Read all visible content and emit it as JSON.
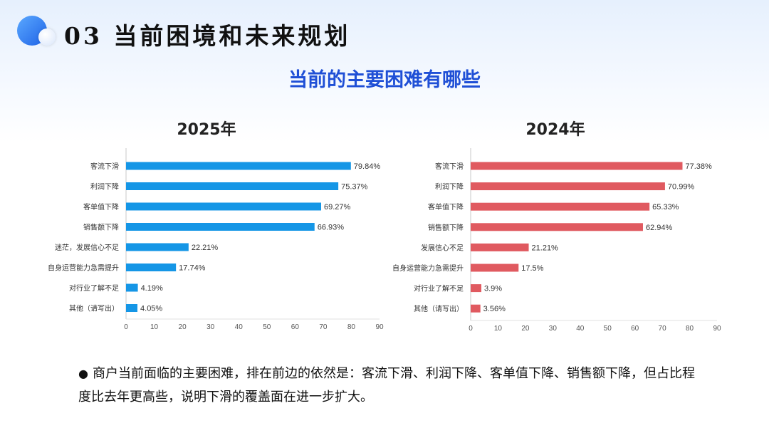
{
  "header": {
    "title": "03 当前困境和未来规划"
  },
  "main_title": "当前的主要困难有哪些",
  "charts": [
    {
      "title": "2025年"
    },
    {
      "title": "2024年"
    }
  ],
  "chart_data": [
    {
      "type": "bar",
      "orientation": "horizontal",
      "title": "2025年",
      "categories": [
        "客流下滑",
        "利润下降",
        "客单值下降",
        "销售额下降",
        "迷茫，发展信心不足",
        "自身运营能力急需提升",
        "对行业了解不足",
        "其他（请写出）"
      ],
      "values": [
        79.84,
        75.37,
        69.27,
        66.93,
        22.21,
        17.74,
        4.19,
        4.05
      ],
      "value_labels": [
        "79.84%",
        "75.37%",
        "69.27%",
        "66.93%",
        "22.21%",
        "17.74%",
        "4.19%",
        "4.05%"
      ],
      "xlim": [
        0,
        90
      ],
      "xticks": [
        "0",
        "10",
        "20",
        "30",
        "40",
        "50",
        "60",
        "70",
        "80",
        "90"
      ],
      "color": "#1596e6",
      "grid": false
    },
    {
      "type": "bar",
      "orientation": "horizontal",
      "title": "2024年",
      "categories": [
        "客流下滑",
        "利润下降",
        "客单值下降",
        "销售额下降",
        "发展信心不足",
        "自身运营能力急需提升",
        "对行业了解不足",
        "其他（请写出）"
      ],
      "values": [
        77.38,
        70.99,
        65.33,
        62.94,
        21.21,
        17.5,
        3.9,
        3.56
      ],
      "value_labels": [
        "77.38%",
        "70.99%",
        "65.33%",
        "62.94%",
        "21.21%",
        "17.5%",
        "3.9%",
        "3.56%"
      ],
      "xlim": [
        0,
        90
      ],
      "xticks": [
        "0",
        "10",
        "20",
        "30",
        "40",
        "50",
        "60",
        "70",
        "80",
        "90"
      ],
      "color": "#e05a60",
      "grid": false
    }
  ],
  "description": {
    "bullet": "●",
    "text": "商户当前面临的主要困难，排在前边的依然是：客流下滑、利润下降、客单值下降、销售额下降，但占比程度比去年更高些，说明下滑的覆盖面在进一步扩大。"
  }
}
